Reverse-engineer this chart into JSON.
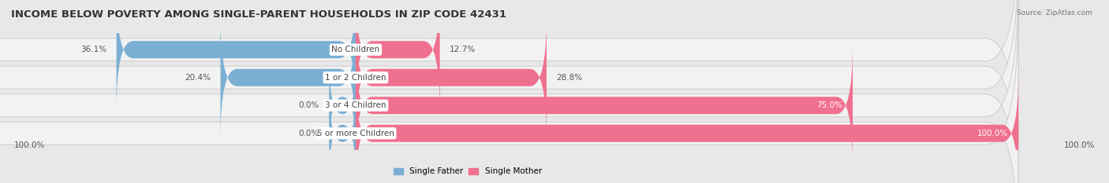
{
  "title": "INCOME BELOW POVERTY AMONG SINGLE-PARENT HOUSEHOLDS IN ZIP CODE 42431",
  "source": "Source: ZipAtlas.com",
  "categories": [
    "No Children",
    "1 or 2 Children",
    "3 or 4 Children",
    "5 or more Children"
  ],
  "single_father": [
    36.1,
    20.4,
    0.0,
    0.0
  ],
  "single_mother": [
    12.7,
    28.8,
    75.0,
    100.0
  ],
  "father_color": "#7bafd4",
  "mother_color": "#f07090",
  "father_label": "Single Father",
  "mother_label": "Single Mother",
  "bar_height": 0.62,
  "bg_color": "#e8e8e8",
  "row_bg_color": "#f2f2f2",
  "row_border_color": "#d0d0d0",
  "max_value": 100.0,
  "title_fontsize": 9.5,
  "label_fontsize": 7.5,
  "tick_fontsize": 7.5,
  "cat_fontsize": 7.5,
  "val_fontsize": 7.5
}
